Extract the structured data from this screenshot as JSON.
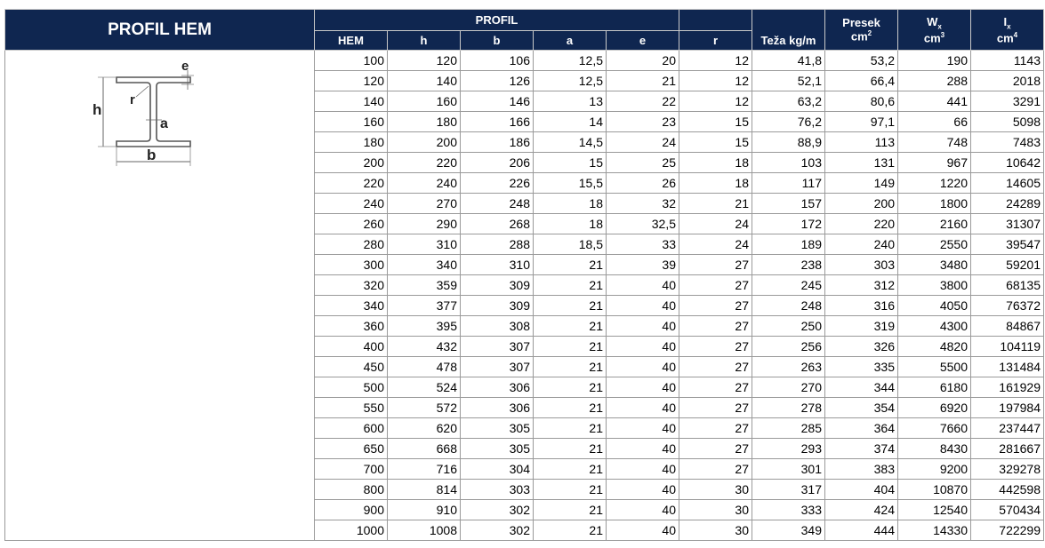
{
  "title": "PROFIL HEM",
  "profil_header": "PROFIL",
  "columns": {
    "hem": "HEM",
    "h": "h",
    "b": "b",
    "a": "a",
    "e": "e",
    "r": "r",
    "weight": "Teža kg/m",
    "section_top": "Presek",
    "section_unit": "cm",
    "section_unit_exp": "2",
    "wx_sym": "W",
    "wx_sub": "x",
    "wx_unit": "cm",
    "wx_unit_exp": "3",
    "ix_sym": "I",
    "ix_sub": "x",
    "ix_unit": "cm",
    "ix_unit_exp": "4"
  },
  "drawing_labels": {
    "h": "h",
    "b": "b",
    "a": "a",
    "e": "e",
    "r": "r"
  },
  "rows": [
    [
      "100",
      "120",
      "106",
      "12,5",
      "20",
      "12",
      "41,8",
      "53,2",
      "190",
      "1143"
    ],
    [
      "120",
      "140",
      "126",
      "12,5",
      "21",
      "12",
      "52,1",
      "66,4",
      "288",
      "2018"
    ],
    [
      "140",
      "160",
      "146",
      "13",
      "22",
      "12",
      "63,2",
      "80,6",
      "441",
      "3291"
    ],
    [
      "160",
      "180",
      "166",
      "14",
      "23",
      "15",
      "76,2",
      "97,1",
      "66",
      "5098"
    ],
    [
      "180",
      "200",
      "186",
      "14,5",
      "24",
      "15",
      "88,9",
      "113",
      "748",
      "7483"
    ],
    [
      "200",
      "220",
      "206",
      "15",
      "25",
      "18",
      "103",
      "131",
      "967",
      "10642"
    ],
    [
      "220",
      "240",
      "226",
      "15,5",
      "26",
      "18",
      "117",
      "149",
      "1220",
      "14605"
    ],
    [
      "240",
      "270",
      "248",
      "18",
      "32",
      "21",
      "157",
      "200",
      "1800",
      "24289"
    ],
    [
      "260",
      "290",
      "268",
      "18",
      "32,5",
      "24",
      "172",
      "220",
      "2160",
      "31307"
    ],
    [
      "280",
      "310",
      "288",
      "18,5",
      "33",
      "24",
      "189",
      "240",
      "2550",
      "39547"
    ],
    [
      "300",
      "340",
      "310",
      "21",
      "39",
      "27",
      "238",
      "303",
      "3480",
      "59201"
    ],
    [
      "320",
      "359",
      "309",
      "21",
      "40",
      "27",
      "245",
      "312",
      "3800",
      "68135"
    ],
    [
      "340",
      "377",
      "309",
      "21",
      "40",
      "27",
      "248",
      "316",
      "4050",
      "76372"
    ],
    [
      "360",
      "395",
      "308",
      "21",
      "40",
      "27",
      "250",
      "319",
      "4300",
      "84867"
    ],
    [
      "400",
      "432",
      "307",
      "21",
      "40",
      "27",
      "256",
      "326",
      "4820",
      "104119"
    ],
    [
      "450",
      "478",
      "307",
      "21",
      "40",
      "27",
      "263",
      "335",
      "5500",
      "131484"
    ],
    [
      "500",
      "524",
      "306",
      "21",
      "40",
      "27",
      "270",
      "344",
      "6180",
      "161929"
    ],
    [
      "550",
      "572",
      "306",
      "21",
      "40",
      "27",
      "278",
      "354",
      "6920",
      "197984"
    ],
    [
      "600",
      "620",
      "305",
      "21",
      "40",
      "27",
      "285",
      "364",
      "7660",
      "237447"
    ],
    [
      "650",
      "668",
      "305",
      "21",
      "40",
      "27",
      "293",
      "374",
      "8430",
      "281667"
    ],
    [
      "700",
      "716",
      "304",
      "21",
      "40",
      "27",
      "301",
      "383",
      "9200",
      "329278"
    ],
    [
      "800",
      "814",
      "303",
      "21",
      "40",
      "30",
      "317",
      "404",
      "10870",
      "442598"
    ],
    [
      "900",
      "910",
      "302",
      "21",
      "40",
      "30",
      "333",
      "424",
      "12540",
      "570434"
    ],
    [
      "1000",
      "1008",
      "302",
      "21",
      "40",
      "30",
      "349",
      "444",
      "14330",
      "722299"
    ]
  ],
  "colors": {
    "header_bg": "#0f2650",
    "header_text": "#ffffff",
    "grid": "#9a9a9a"
  }
}
